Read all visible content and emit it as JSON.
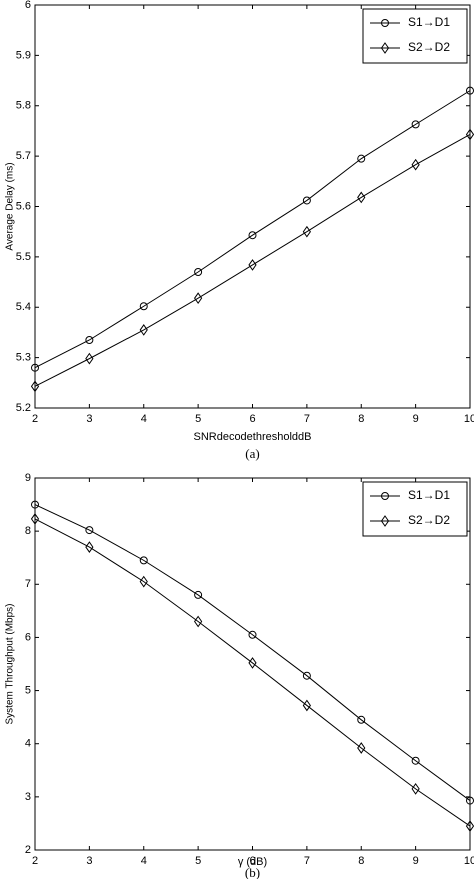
{
  "chart_data": [
    {
      "type": "line",
      "caption": "(a)",
      "xlabel": "SNRdecodethresholddB",
      "ylabel": "Average Delay (ms)",
      "x": [
        2,
        3,
        4,
        5,
        6,
        7,
        8,
        9,
        10
      ],
      "xlim": [
        2,
        10
      ],
      "xticks": [
        2,
        3,
        4,
        5,
        6,
        7,
        8,
        9,
        10
      ],
      "ylim": [
        5.2,
        6
      ],
      "yticks": [
        5.2,
        5.3,
        5.4,
        5.5,
        5.6,
        5.7,
        5.8,
        5.9,
        6
      ],
      "grid": false,
      "legend": "upper right",
      "series": [
        {
          "name": "S1→D1",
          "color": "#000000",
          "marker": "circle",
          "values": [
            5.28,
            5.335,
            5.402,
            5.47,
            5.543,
            5.612,
            5.695,
            5.763,
            5.83
          ]
        },
        {
          "name": "S2→D2",
          "color": "#000000",
          "marker": "diamond",
          "values": [
            5.243,
            5.298,
            5.355,
            5.418,
            5.484,
            5.55,
            5.618,
            5.683,
            5.743
          ]
        }
      ]
    },
    {
      "type": "line",
      "caption": "(b)",
      "xlabel": "γ (dB)",
      "ylabel": "System Throughput (Mbps)",
      "x": [
        2,
        3,
        4,
        5,
        6,
        7,
        8,
        9,
        10
      ],
      "xlim": [
        2,
        10
      ],
      "xticks": [
        2,
        3,
        4,
        5,
        6,
        7,
        8,
        9,
        10
      ],
      "ylim": [
        2,
        9
      ],
      "yticks": [
        2,
        3,
        4,
        5,
        6,
        7,
        8,
        9
      ],
      "grid": false,
      "legend": "upper right",
      "series": [
        {
          "name": "S1→D1",
          "color": "#000000",
          "marker": "circle",
          "values": [
            8.5,
            8.02,
            7.45,
            6.8,
            6.05,
            5.28,
            4.45,
            3.68,
            2.93
          ]
        },
        {
          "name": "S2→D2",
          "color": "#000000",
          "marker": "diamond",
          "values": [
            8.23,
            7.7,
            7.05,
            6.3,
            5.52,
            4.72,
            3.92,
            3.15,
            2.45
          ]
        }
      ]
    }
  ]
}
